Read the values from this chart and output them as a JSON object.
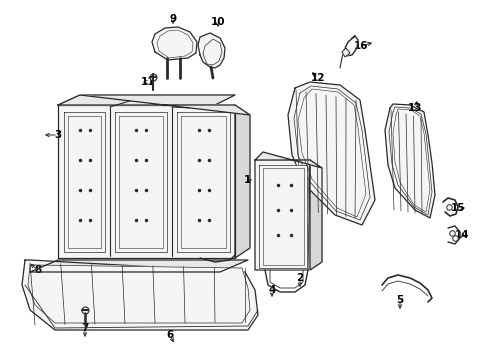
{
  "bg_color": "#ffffff",
  "line_color": "#2a2a2a",
  "fill_light": "#f5f5f5",
  "fill_mid": "#e8e8e8",
  "fill_dark": "#d8d8d8",
  "fig_width": 4.89,
  "fig_height": 3.6,
  "dpi": 100,
  "font_size": 7.5,
  "arrow_lw": 0.7
}
